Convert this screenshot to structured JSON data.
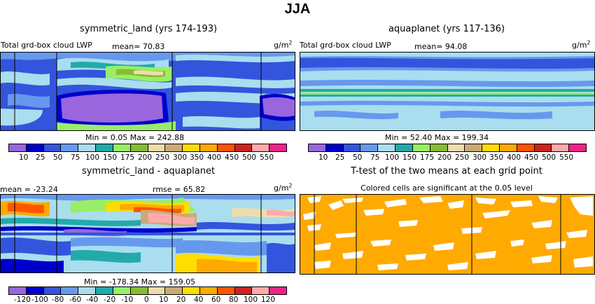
{
  "figure": {
    "title": "JJA"
  },
  "panels": [
    {
      "id": "p1",
      "title": "symmetric_land (yrs 174-193)",
      "field_label": "Total grd-box cloud LWP",
      "mean_text": "mean=   70.83",
      "unit": "g/m",
      "unit_sup": "2",
      "minmax_text": "Min =    0.05 Max = 242.88"
    },
    {
      "id": "p2",
      "title": "aquaplanet (yrs 117-136)",
      "field_label": "Total grd-box cloud LWP",
      "mean_text": "mean=   94.08",
      "unit": "g/m",
      "unit_sup": "2",
      "minmax_text": "Min =   52.40 Max = 199.34"
    },
    {
      "id": "p3",
      "title": "symmetric_land - aquaplanet",
      "mean_text": "mean = -23.24",
      "rmse_text": "rmse =   65.82",
      "unit": "g/m",
      "unit_sup": "2",
      "minmax_text": "Min = -178.34 Max = 159.05"
    },
    {
      "id": "p4",
      "title": "T-test of the two means at each grid point",
      "subtitle": "Colored cells are significant at the 0.05 level"
    }
  ],
  "colorbars": {
    "levels_abs": [
      "10",
      "25",
      "50",
      "75",
      "100",
      "150",
      "175",
      "200",
      "250",
      "300",
      "350",
      "400",
      "450",
      "500",
      "550"
    ],
    "levels_diff": [
      "-120",
      "-100",
      "-80",
      "-60",
      "-40",
      "-20",
      "-10",
      "0",
      "10",
      "20",
      "40",
      "60",
      "80",
      "100",
      "120"
    ],
    "colors": [
      "#9966dd",
      "#0000cc",
      "#3355dd",
      "#6699ee",
      "#aaddee",
      "#22aaaa",
      "#99ee66",
      "#88bb33",
      "#eeddaa",
      "#ccaa77",
      "#ffdd00",
      "#ffaa00",
      "#ff5500",
      "#cc2222",
      "#ffaaaa",
      "#ee2288"
    ]
  },
  "chart_data": [
    {
      "type": "heatmap",
      "title": "symmetric_land (yrs 174-193)",
      "variable": "Total grd-box cloud LWP",
      "mean": 70.83,
      "min": 0.05,
      "max": 242.88,
      "levels": [
        10,
        25,
        50,
        75,
        100,
        150,
        175,
        200,
        250,
        300,
        350,
        400,
        450,
        500,
        550
      ]
    },
    {
      "type": "heatmap",
      "title": "aquaplanet (yrs 117-136)",
      "variable": "Total grd-box cloud LWP",
      "mean": 94.08,
      "min": 52.4,
      "max": 199.34,
      "levels": [
        10,
        25,
        50,
        75,
        100,
        150,
        175,
        200,
        250,
        300,
        350,
        400,
        450,
        500,
        550
      ]
    },
    {
      "type": "heatmap",
      "title": "symmetric_land - aquaplanet",
      "mean": -23.24,
      "rmse": 65.82,
      "min": -178.34,
      "max": 159.05,
      "levels": [
        -120,
        -100,
        -80,
        -60,
        -40,
        -20,
        -10,
        0,
        10,
        20,
        40,
        60,
        80,
        100,
        120
      ]
    },
    {
      "type": "heatmap",
      "title": "T-test of the two means at each grid point",
      "significance_level": 0.05
    }
  ]
}
